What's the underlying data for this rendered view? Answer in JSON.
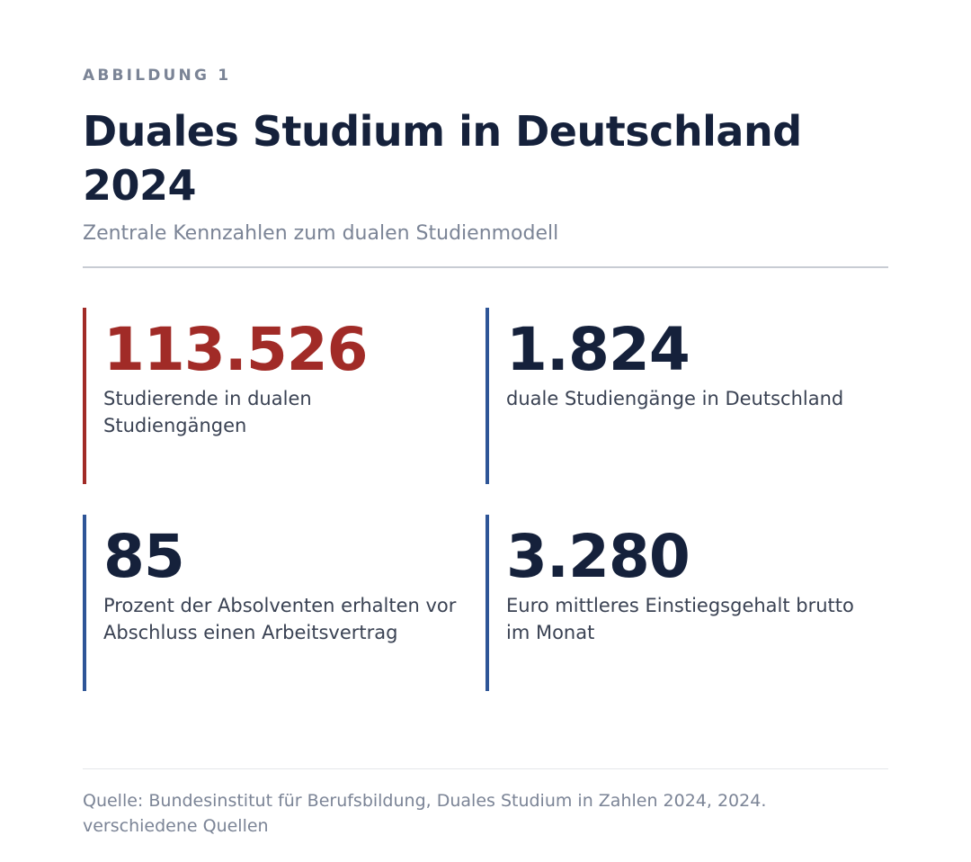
{
  "figure": {
    "eyebrow": "ABBILDUNG 1",
    "title": "Duales Studium in Deutschland 2024",
    "subtitle": "Zentrale Kennzahlen zum dualen Studienmodell"
  },
  "stats": [
    {
      "value": "113.526",
      "label": "Studierende in dualen Studiengängen",
      "accent": true
    },
    {
      "value": "1.824",
      "label": "duale Studiengänge in Deutschland",
      "accent": false
    },
    {
      "value": "85",
      "label": "Prozent der Absolventen erhalten vor Abschluss einen Arbeitsvertrag",
      "accent": false
    },
    {
      "value": "3.280",
      "label": "Euro mittleres Einstiegsgehalt brutto im Monat",
      "accent": false
    }
  ],
  "source": {
    "line1": "Quelle: Bundesinstitut für Berufsbildung, Duales Studium in Zahlen 2024, 2024.",
    "line2": "verschiedene Quellen"
  },
  "colors": {
    "accent_red": "#a12b27",
    "accent_blue": "#2e5597",
    "heading": "#15213b",
    "muted": "#7b8496"
  }
}
